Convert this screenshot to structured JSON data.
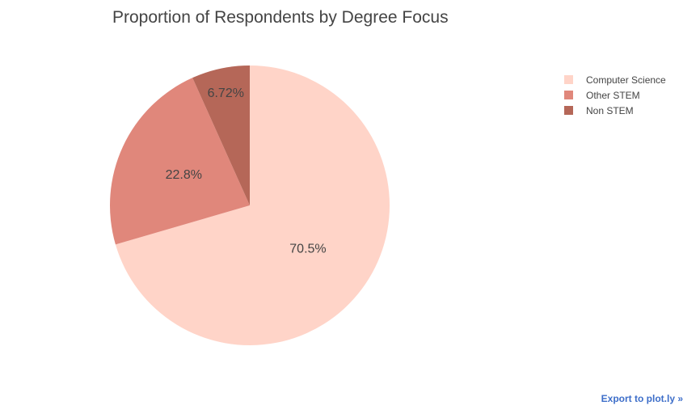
{
  "chart_data": {
    "type": "pie",
    "title": "Proportion of Respondents by Degree Focus",
    "categories": [
      "Computer Science",
      "Other STEM",
      "Non STEM"
    ],
    "values": [
      70.5,
      22.8,
      6.72
    ],
    "labels": [
      "70.5%",
      "22.8%",
      "6.72%"
    ],
    "colors": [
      "#ffd4c8",
      "#e0877b",
      "#b56758"
    ],
    "legend_position": "top-right"
  },
  "footer": {
    "export_label": "Export to plot.ly »"
  }
}
